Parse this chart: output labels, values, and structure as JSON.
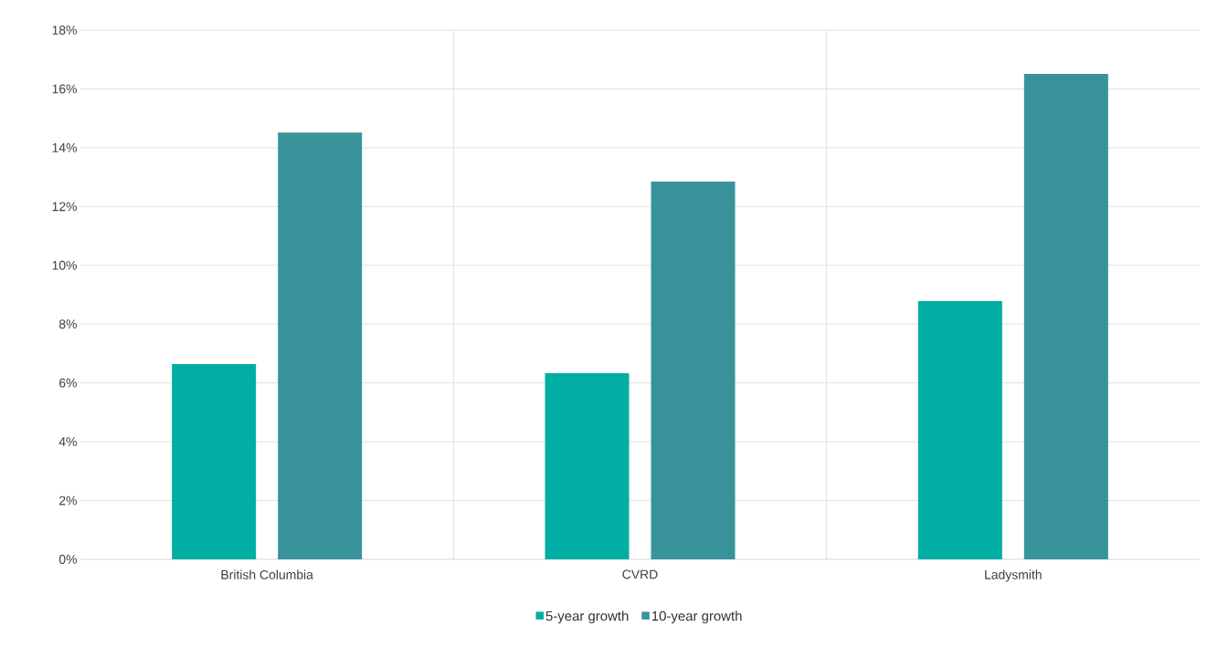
{
  "chart_data": {
    "type": "bar",
    "categories": [
      "British Columbia",
      "CVRD",
      "Ladysmith"
    ],
    "series": [
      {
        "name": "5-year growth",
        "color": "#00aea4",
        "values": [
          6.64,
          6.33,
          8.78
        ]
      },
      {
        "name": "10-year growth",
        "color": "#38939b",
        "values": [
          14.52,
          12.85,
          16.51
        ]
      }
    ],
    "ylim": [
      0,
      18
    ],
    "yticks": [
      {
        "value": 0,
        "label": "0%"
      },
      {
        "value": 2,
        "label": "2%"
      },
      {
        "value": 4,
        "label": "4%"
      },
      {
        "value": 6,
        "label": "6%"
      },
      {
        "value": 8,
        "label": "8%"
      },
      {
        "value": 10,
        "label": "10%"
      },
      {
        "value": 12,
        "label": "12%"
      },
      {
        "value": 14,
        "label": "14%"
      },
      {
        "value": 16,
        "label": "16%"
      },
      {
        "value": 18,
        "label": "18%"
      }
    ],
    "grid": true,
    "legend": "bottom"
  }
}
